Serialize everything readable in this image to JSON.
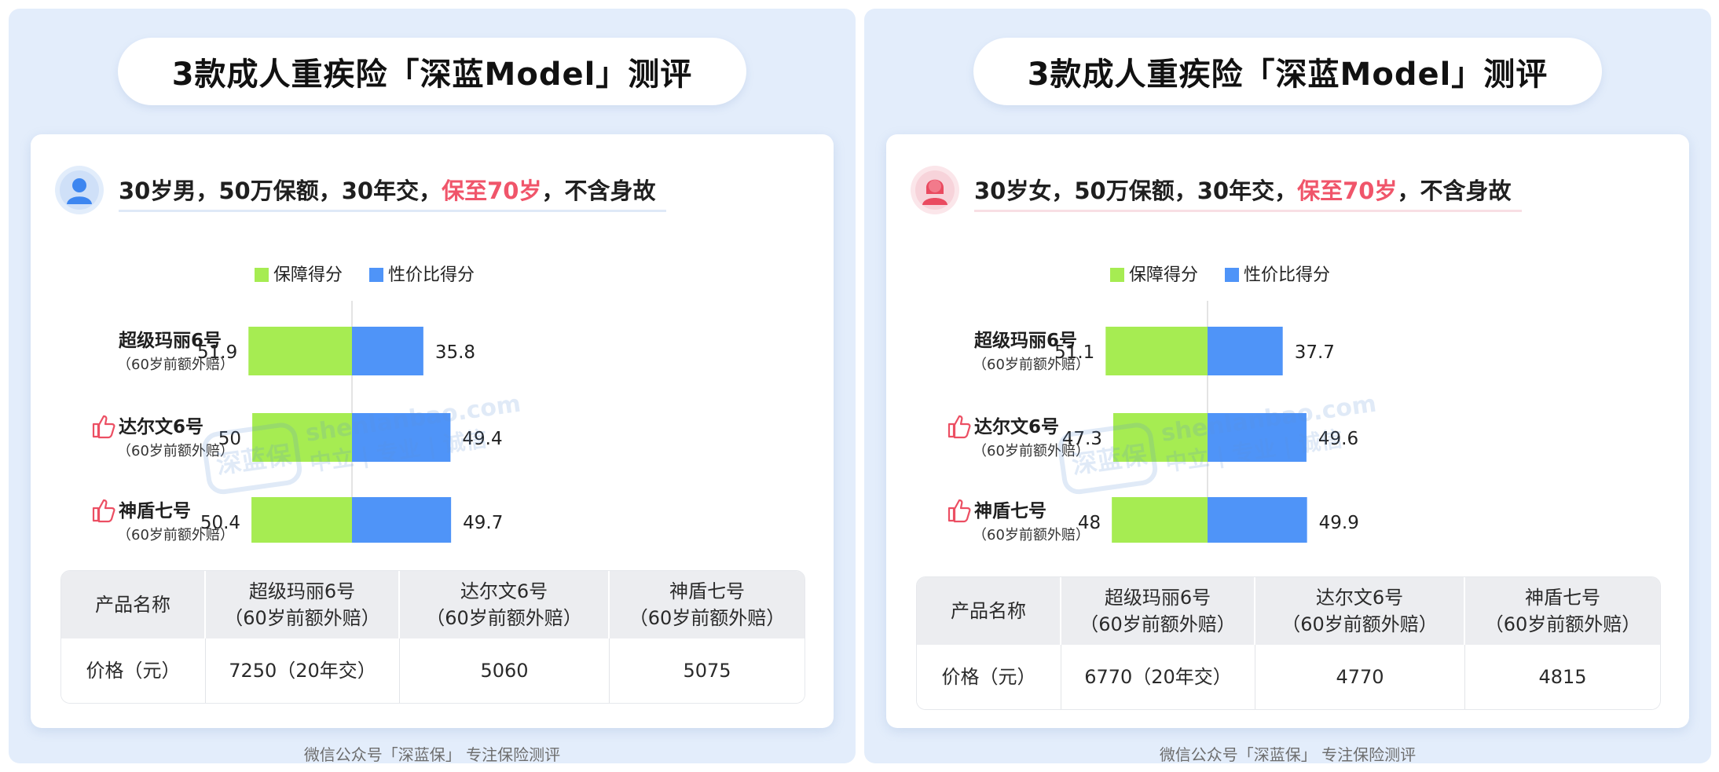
{
  "panels": [
    {
      "title": "3款成人重疾险「深蓝Model」测评",
      "scenario": {
        "before": "30岁男，50万保额，30年交，",
        "highlight": "保至70岁",
        "after": "，不含身故"
      },
      "avatar_icon": "male-user-icon",
      "chart_data": {
        "type": "bar",
        "orientation": "horizontal-diverging",
        "legend": [
          "保障得分",
          "性价比得分"
        ],
        "legend_position": "top",
        "colors": [
          "#a6ec52",
          "#4f94f8"
        ],
        "categories": [
          {
            "name": "超级玛丽6号",
            "sub": "（60岁前额外赔）",
            "recommended": false
          },
          {
            "name": "达尔文6号",
            "sub": "（60岁前额外赔）",
            "recommended": true
          },
          {
            "name": "神盾七号",
            "sub": "（60岁前额外赔）",
            "recommended": true
          }
        ],
        "series": [
          {
            "name": "保障得分",
            "values": [
              51.9,
              50,
              50.4
            ]
          },
          {
            "name": "性价比得分",
            "values": [
              35.8,
              49.4,
              49.7
            ]
          }
        ]
      },
      "watermark": {
        "logo": "深蓝保",
        "line1": "shenlanbao.com",
        "line2": "中立 | 专业 | 诚信"
      },
      "table": {
        "headers": [
          "产品名称",
          "超级玛丽6号\n（60岁前额外赔）",
          "达尔文6号\n（60岁前额外赔）",
          "神盾七号\n（60岁前额外赔）"
        ],
        "rows": [
          [
            "价格（元）",
            "7250（20年交）",
            "5060",
            "5075"
          ]
        ]
      },
      "footer": "微信公众号「深蓝保」 专注保险测评"
    },
    {
      "title": "3款成人重疾险「深蓝Model」测评",
      "scenario": {
        "before": "30岁女，50万保额，30年交，",
        "highlight": "保至70岁",
        "after": "，不含身故"
      },
      "avatar_icon": "female-user-icon",
      "chart_data": {
        "type": "bar",
        "orientation": "horizontal-diverging",
        "legend": [
          "保障得分",
          "性价比得分"
        ],
        "legend_position": "top",
        "colors": [
          "#a6ec52",
          "#4f94f8"
        ],
        "categories": [
          {
            "name": "超级玛丽6号",
            "sub": "（60岁前额外赔）",
            "recommended": false
          },
          {
            "name": "达尔文6号",
            "sub": "（60岁前额外赔）",
            "recommended": true
          },
          {
            "name": "神盾七号",
            "sub": "（60岁前额外赔）",
            "recommended": true
          }
        ],
        "series": [
          {
            "name": "保障得分",
            "values": [
              51.1,
              47.3,
              48
            ]
          },
          {
            "name": "性价比得分",
            "values": [
              37.7,
              49.6,
              49.9
            ]
          }
        ]
      },
      "watermark": {
        "logo": "深蓝保",
        "line1": "shenlanbao.com",
        "line2": "中立 | 专业 | 诚信"
      },
      "table": {
        "headers": [
          "产品名称",
          "超级玛丽6号\n（60岁前额外赔）",
          "达尔文6号\n（60岁前额外赔）",
          "神盾七号\n（60岁前额外赔）"
        ],
        "rows": [
          [
            "价格（元）",
            "6770（20年交）",
            "4770",
            "4815"
          ]
        ]
      },
      "footer": "微信公众号「深蓝保」 专注保险测评"
    }
  ]
}
